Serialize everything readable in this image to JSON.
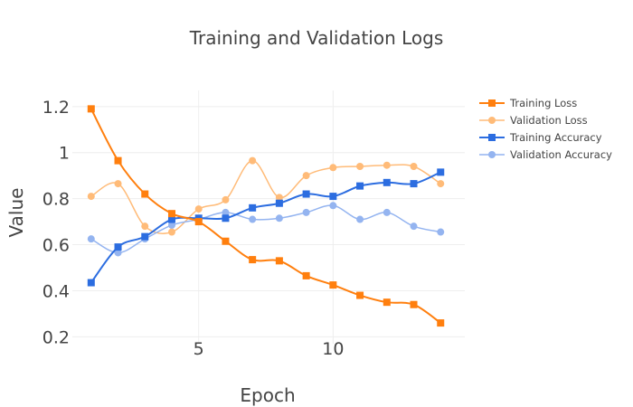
{
  "chart_data": {
    "type": "line",
    "title": "Training and Validation Logs",
    "xlabel": "Epoch",
    "ylabel": "Value",
    "x": [
      1,
      2,
      3,
      4,
      5,
      6,
      7,
      8,
      9,
      10,
      11,
      12,
      13,
      14
    ],
    "xlim": [
      0.3,
      14.9
    ],
    "ylim": [
      0.17,
      1.27
    ],
    "xticks": [
      5,
      10
    ],
    "yticks": [
      0.2,
      0.4,
      0.6,
      0.8,
      1,
      1.2
    ],
    "xtick_labels": [
      "5",
      "10"
    ],
    "ytick_labels": [
      "0.2",
      "0.4",
      "0.6",
      "0.8",
      "1",
      "1.2"
    ],
    "grid": true,
    "legend_position": "top-right",
    "series": [
      {
        "name": "Training Loss",
        "color": "#ff7f0e",
        "marker": "square",
        "width": 2,
        "values": [
          1.19,
          0.965,
          0.82,
          0.735,
          0.7,
          0.615,
          0.535,
          0.53,
          0.465,
          0.425,
          0.38,
          0.35,
          0.34,
          0.26
        ]
      },
      {
        "name": "Validation Loss",
        "color": "#ffbb78",
        "marker": "circle",
        "width": 1.5,
        "values": [
          0.81,
          0.865,
          0.68,
          0.655,
          0.755,
          0.795,
          0.965,
          0.805,
          0.9,
          0.935,
          0.94,
          0.945,
          0.94,
          0.865
        ]
      },
      {
        "name": "Training Accuracy",
        "color": "#2c6de0",
        "marker": "square",
        "width": 2,
        "values": [
          0.435,
          0.59,
          0.635,
          0.71,
          0.715,
          0.715,
          0.76,
          0.78,
          0.82,
          0.81,
          0.855,
          0.87,
          0.865,
          0.915
        ]
      },
      {
        "name": "Validation Accuracy",
        "color": "#94b4f0",
        "marker": "circle",
        "width": 1.5,
        "values": [
          0.625,
          0.565,
          0.625,
          0.685,
          0.71,
          0.74,
          0.71,
          0.715,
          0.74,
          0.77,
          0.71,
          0.74,
          0.68,
          0.655
        ]
      }
    ]
  }
}
